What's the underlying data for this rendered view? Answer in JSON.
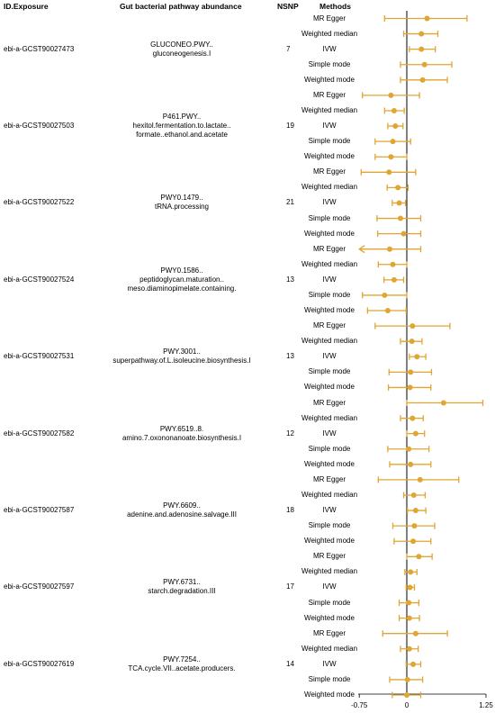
{
  "headers": {
    "exposure": "ID.Exposure",
    "pathway": "Gut bacterial pathway abundance",
    "nsnp": "NSNP",
    "methods": "Methods"
  },
  "colors": {
    "point": "#E0A533",
    "zero_line": "#000000"
  },
  "chart_data": {
    "type": "forest",
    "xlim": [
      -0.75,
      1.25
    ],
    "xticks": [
      "-0.75",
      "0",
      "1.25"
    ],
    "method_order": [
      "MR Egger",
      "Weighted median",
      "IVW",
      "Simple mode",
      "Weighted mode"
    ],
    "groups": [
      {
        "exposure": "ebi-a-GCST90027473",
        "pathway": [
          "GLUCONEO.PWY..",
          "gluconeogenesis.I"
        ],
        "nsnp": "7",
        "estimates": [
          {
            "method": "MR Egger",
            "est": 0.32,
            "lo": -0.35,
            "hi": 0.95
          },
          {
            "method": "Weighted median",
            "est": 0.23,
            "lo": -0.05,
            "hi": 0.49
          },
          {
            "method": "IVW",
            "est": 0.23,
            "lo": 0.04,
            "hi": 0.45
          },
          {
            "method": "Simple mode",
            "est": 0.28,
            "lo": -0.1,
            "hi": 0.71
          },
          {
            "method": "Weighted mode",
            "est": 0.25,
            "lo": -0.1,
            "hi": 0.64
          }
        ]
      },
      {
        "exposure": "ebi-a-GCST90027503",
        "pathway": [
          "P461.PWY..",
          "hexitol.fermentation.to.lactate..",
          "formate..ethanol.and.acetate"
        ],
        "nsnp": "19",
        "estimates": [
          {
            "method": "MR Egger",
            "est": -0.25,
            "lo": -0.7,
            "hi": 0.2
          },
          {
            "method": "Weighted median",
            "est": -0.2,
            "lo": -0.35,
            "hi": -0.04
          },
          {
            "method": "IVW",
            "est": -0.18,
            "lo": -0.3,
            "hi": -0.06
          },
          {
            "method": "Simple mode",
            "est": -0.22,
            "lo": -0.5,
            "hi": 0.06
          },
          {
            "method": "Weighted mode",
            "est": -0.25,
            "lo": -0.5,
            "hi": 0.0
          }
        ]
      },
      {
        "exposure": "ebi-a-GCST90027522",
        "pathway": [
          "PWY0.1479..",
          "tRNA.processing"
        ],
        "nsnp": "21",
        "estimates": [
          {
            "method": "MR Egger",
            "est": -0.28,
            "lo": -0.72,
            "hi": 0.14
          },
          {
            "method": "Weighted median",
            "est": -0.14,
            "lo": -0.31,
            "hi": 0.02
          },
          {
            "method": "IVW",
            "est": -0.12,
            "lo": -0.23,
            "hi": -0.02
          },
          {
            "method": "Simple mode",
            "est": -0.1,
            "lo": -0.47,
            "hi": 0.22
          },
          {
            "method": "Weighted mode",
            "est": -0.05,
            "lo": -0.46,
            "hi": 0.22
          }
        ]
      },
      {
        "exposure": "ebi-a-GCST90027524",
        "pathway": [
          "PWY0.1586..",
          "peptidoglycan.maturation..",
          "meso.diaminopimelate.containing."
        ],
        "nsnp": "13",
        "estimates": [
          {
            "method": "MR Egger",
            "est": -0.27,
            "lo": -0.85,
            "hi": 0.22
          },
          {
            "method": "Weighted median",
            "est": -0.22,
            "lo": -0.45,
            "hi": 0.0
          },
          {
            "method": "IVW",
            "est": -0.2,
            "lo": -0.36,
            "hi": -0.05
          },
          {
            "method": "Simple mode",
            "est": -0.35,
            "lo": -0.7,
            "hi": 0.0
          },
          {
            "method": "Weighted mode",
            "est": -0.3,
            "lo": -0.62,
            "hi": -0.01
          }
        ]
      },
      {
        "exposure": "ebi-a-GCST90027531",
        "pathway": [
          "PWY.3001..",
          "superpathway.of.L.isoleucine.biosynthesis.I"
        ],
        "nsnp": "13",
        "estimates": [
          {
            "method": "MR Egger",
            "est": 0.09,
            "lo": -0.5,
            "hi": 0.68
          },
          {
            "method": "Weighted median",
            "est": 0.08,
            "lo": -0.1,
            "hi": 0.24
          },
          {
            "method": "IVW",
            "est": 0.16,
            "lo": 0.04,
            "hi": 0.3
          },
          {
            "method": "Simple mode",
            "est": 0.06,
            "lo": -0.28,
            "hi": 0.39
          },
          {
            "method": "Weighted mode",
            "est": 0.05,
            "lo": -0.29,
            "hi": 0.38
          }
        ]
      },
      {
        "exposure": "ebi-a-GCST90027582",
        "pathway": [
          "PWY.6519..8.",
          "amino.7.oxononanoate.biosynthesis.I"
        ],
        "nsnp": "12",
        "estimates": [
          {
            "method": "MR Egger",
            "est": 0.58,
            "lo": 0.0,
            "hi": 1.2
          },
          {
            "method": "Weighted median",
            "est": 0.09,
            "lo": -0.1,
            "hi": 0.26
          },
          {
            "method": "IVW",
            "est": 0.14,
            "lo": 0.0,
            "hi": 0.28
          },
          {
            "method": "Simple mode",
            "est": 0.03,
            "lo": -0.3,
            "hi": 0.35
          },
          {
            "method": "Weighted mode",
            "est": 0.06,
            "lo": -0.27,
            "hi": 0.38
          }
        ]
      },
      {
        "exposure": "ebi-a-GCST90027587",
        "pathway": [
          "PWY.6609..",
          "adenine.and.adenosine.salvage.III"
        ],
        "nsnp": "18",
        "estimates": [
          {
            "method": "MR Egger",
            "est": 0.21,
            "lo": -0.45,
            "hi": 0.82
          },
          {
            "method": "Weighted median",
            "est": 0.11,
            "lo": -0.05,
            "hi": 0.29
          },
          {
            "method": "IVW",
            "est": 0.14,
            "lo": 0.01,
            "hi": 0.3
          },
          {
            "method": "Simple mode",
            "est": 0.12,
            "lo": -0.22,
            "hi": 0.44
          },
          {
            "method": "Weighted mode",
            "est": 0.1,
            "lo": -0.2,
            "hi": 0.38
          }
        ]
      },
      {
        "exposure": "ebi-a-GCST90027597",
        "pathway": [
          "PWY.6731..",
          "starch.degradation.III"
        ],
        "nsnp": "17",
        "estimates": [
          {
            "method": "MR Egger",
            "est": 0.19,
            "lo": 0.0,
            "hi": 0.4
          },
          {
            "method": "Weighted median",
            "est": 0.06,
            "lo": -0.03,
            "hi": 0.16
          },
          {
            "method": "IVW",
            "est": 0.05,
            "lo": -0.01,
            "hi": 0.12
          },
          {
            "method": "Simple mode",
            "est": 0.03,
            "lo": -0.12,
            "hi": 0.19
          },
          {
            "method": "Weighted mode",
            "est": 0.04,
            "lo": -0.12,
            "hi": 0.2
          }
        ]
      },
      {
        "exposure": "ebi-a-GCST90027619",
        "pathway": [
          "PWY.7254..",
          "TCA.cycle.VII..acetate.producers."
        ],
        "nsnp": "14",
        "estimates": [
          {
            "method": "MR Egger",
            "est": 0.14,
            "lo": -0.38,
            "hi": 0.64
          },
          {
            "method": "Weighted median",
            "est": 0.04,
            "lo": -0.1,
            "hi": 0.18
          },
          {
            "method": "IVW",
            "est": 0.1,
            "lo": -0.01,
            "hi": 0.22
          },
          {
            "method": "Simple mode",
            "est": 0.01,
            "lo": -0.27,
            "hi": 0.25
          },
          {
            "method": "Weighted mode",
            "est": 0.0,
            "lo": -0.23,
            "hi": 0.22
          }
        ]
      }
    ]
  }
}
